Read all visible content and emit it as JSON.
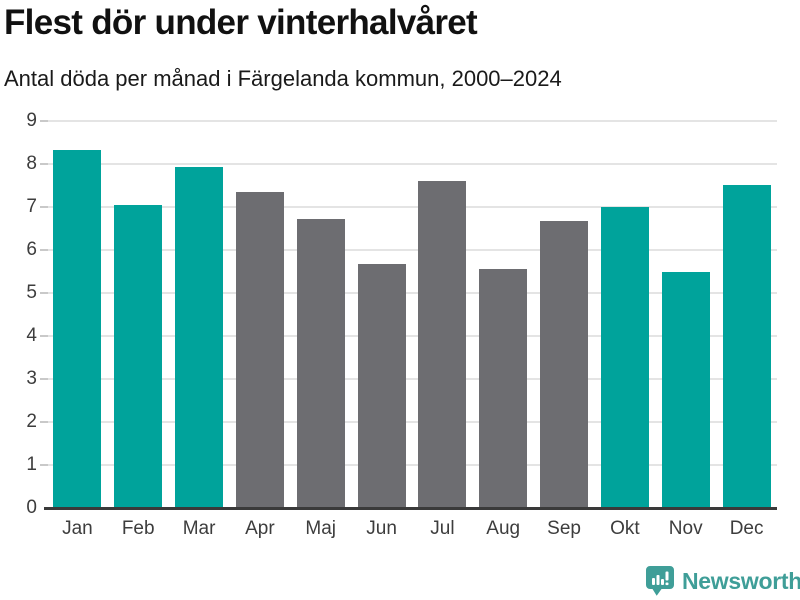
{
  "header": {
    "title": "Flest dör under vinterhalvåret",
    "subtitle": "Antal döda per månad i Färgelanda kommun, 2000–2024"
  },
  "chart_data": {
    "type": "bar",
    "title": "Flest dör under vinterhalvåret",
    "subtitle": "Antal döda per månad i Färgelanda kommun, 2000–2024",
    "categories": [
      "Jan",
      "Feb",
      "Mar",
      "Apr",
      "Maj",
      "Jun",
      "Jul",
      "Aug",
      "Sep",
      "Okt",
      "Nov",
      "Dec"
    ],
    "values": [
      8.32,
      7.04,
      7.92,
      7.36,
      6.72,
      5.68,
      7.6,
      5.56,
      6.68,
      7.0,
      5.48,
      7.52
    ],
    "bar_roles": [
      "highlight",
      "highlight",
      "highlight",
      "muted",
      "muted",
      "muted",
      "muted",
      "muted",
      "muted",
      "highlight",
      "highlight",
      "highlight"
    ],
    "xlabel": "",
    "ylabel": "",
    "ylim": [
      0,
      9
    ],
    "yticks": [
      0,
      1,
      2,
      3,
      4,
      5,
      6,
      7,
      8,
      9
    ],
    "grid": true,
    "legend": "none"
  },
  "colors": {
    "highlight": "#00a39b",
    "muted": "#6d6d71",
    "gridline": "#e4e4e4",
    "tick": "#c9c9c9",
    "axis_line": "#3a3a3a",
    "axis_label": "#3d3d3d",
    "title": "#111111",
    "subtitle": "#1a1a1a",
    "brand": "#3f9e98",
    "background": "#ffffff"
  },
  "footer": {
    "brand": "Newsworthy",
    "logo_icon": "bar-chart-speech-bubble-icon"
  }
}
